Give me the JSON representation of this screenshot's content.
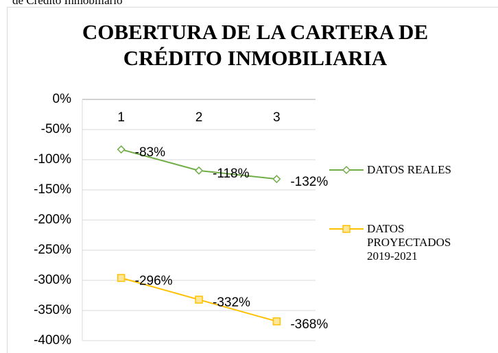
{
  "caption": "de Crédito Inmobiliario",
  "chart_data": {
    "type": "line",
    "title_lines": [
      "COBERTURA DE LA CARTERA DE",
      "CRÉDITO INMOBILIARIA"
    ],
    "categories": [
      "1",
      "2",
      "3"
    ],
    "series": [
      {
        "name": "DATOS REALES",
        "color": "#70ad47",
        "marker": "diamond",
        "values": [
          -83,
          -118,
          -132
        ],
        "value_labels": [
          "-83%",
          "-118%",
          "-132%"
        ]
      },
      {
        "name": "DATOS PROYECTADOS 2019-2021",
        "color": "#ffc000",
        "marker": "square",
        "values": [
          -296,
          -332,
          -368
        ],
        "value_labels": [
          "-296%",
          "-332%",
          "-368%"
        ]
      }
    ],
    "ylim": [
      -400,
      0
    ],
    "yticks": [
      {
        "value": 0,
        "label": "0%"
      },
      {
        "value": -50,
        "label": "-50%"
      },
      {
        "value": -100,
        "label": "-100%"
      },
      {
        "value": -150,
        "label": "-150%"
      },
      {
        "value": -200,
        "label": "-200%"
      },
      {
        "value": -250,
        "label": "-250%"
      },
      {
        "value": -300,
        "label": "-300%"
      },
      {
        "value": -350,
        "label": "-350%"
      },
      {
        "value": -400,
        "label": "-400%"
      }
    ],
    "grid": true,
    "legend": "right"
  }
}
